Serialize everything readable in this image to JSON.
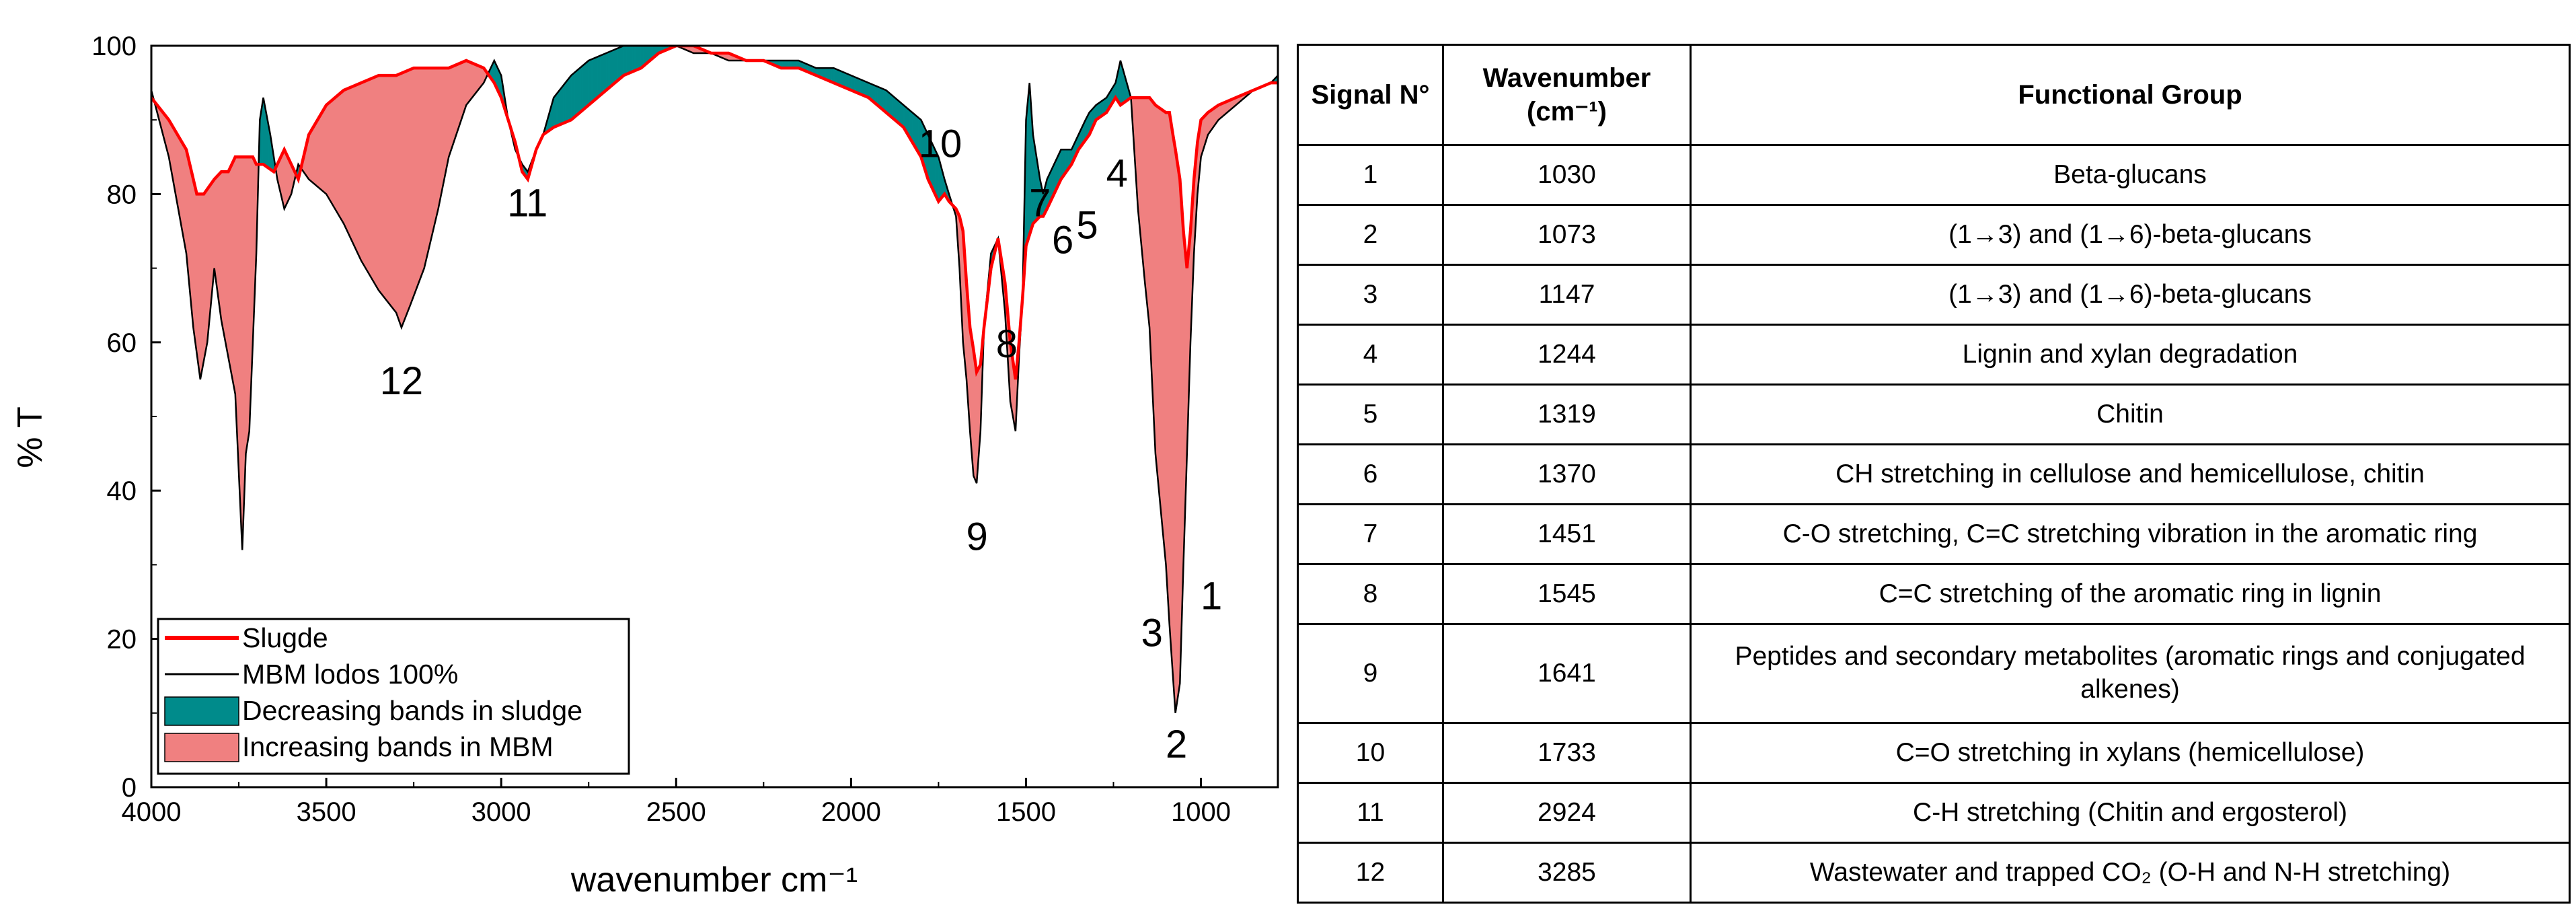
{
  "chart_data": {
    "type": "line",
    "ylabel": "% T",
    "xlabel": "wavenumber cm⁻¹",
    "xlim": [
      4000,
      780
    ],
    "ylim": [
      0,
      100
    ],
    "x_ticks": [
      4000,
      3500,
      3000,
      2500,
      2000,
      1500,
      1000
    ],
    "y_ticks": [
      0,
      20,
      40,
      60,
      80,
      100
    ],
    "legend": {
      "placement": "bottom-left",
      "entries": [
        "Slugde",
        "MBM lodos 100%",
        "Decreasing bands in sludge",
        "Increasing bands in MBM"
      ]
    },
    "colors": {
      "sludge": "#ff0000",
      "mbm": "#000000",
      "decreasing": "#008b8b",
      "increasing": "#f08080"
    },
    "series": [
      {
        "name": "Slugde",
        "x": [
          4000,
          3950,
          3900,
          3870,
          3850,
          3820,
          3800,
          3780,
          3760,
          3740,
          3730,
          3720,
          3710,
          3700,
          3680,
          3650,
          3620,
          3600,
          3580,
          3550,
          3500,
          3450,
          3400,
          3350,
          3300,
          3250,
          3200,
          3150,
          3100,
          3050,
          3020,
          3000,
          2980,
          2960,
          2940,
          2924,
          2900,
          2880,
          2850,
          2800,
          2750,
          2700,
          2650,
          2600,
          2550,
          2500,
          2450,
          2400,
          2350,
          2300,
          2250,
          2200,
          2150,
          2100,
          2050,
          2000,
          1950,
          1900,
          1850,
          1800,
          1780,
          1760,
          1750,
          1733,
          1720,
          1700,
          1690,
          1680,
          1670,
          1660,
          1650,
          1641,
          1630,
          1620,
          1600,
          1580,
          1560,
          1545,
          1530,
          1520,
          1510,
          1500,
          1480,
          1460,
          1451,
          1440,
          1420,
          1400,
          1370,
          1350,
          1319,
          1300,
          1270,
          1244,
          1230,
          1200,
          1180,
          1160,
          1147,
          1130,
          1100,
          1090,
          1080,
          1073,
          1060,
          1050,
          1040,
          1030,
          1020,
          1010,
          1000,
          980,
          950,
          900,
          850,
          800,
          780
        ],
        "y": [
          93,
          90,
          86,
          80,
          80,
          82,
          83,
          83,
          85,
          85,
          85,
          85,
          85,
          84,
          84,
          83,
          86,
          84,
          82,
          88,
          92,
          94,
          95,
          96,
          96,
          97,
          97,
          97,
          98,
          97,
          95,
          93,
          90,
          87,
          83,
          82,
          86,
          88,
          89,
          90,
          92,
          94,
          96,
          97,
          99,
          100,
          100,
          99,
          99,
          98,
          98,
          97,
          97,
          96,
          95,
          94,
          93,
          91,
          89,
          85,
          82,
          80,
          79,
          80,
          79,
          78,
          77,
          75,
          68,
          62,
          59,
          56,
          57,
          62,
          70,
          74,
          68,
          60,
          55,
          60,
          66,
          73,
          76,
          77,
          77,
          78,
          80,
          82,
          84,
          86,
          88,
          90,
          91,
          93,
          92,
          93,
          93,
          93,
          93,
          92,
          91,
          91,
          88,
          86,
          82,
          75,
          70,
          75,
          82,
          87,
          90,
          91,
          92,
          93,
          94,
          95,
          95
        ]
      },
      {
        "name": "MBM lodos 100%",
        "x": [
          4000,
          3950,
          3900,
          3880,
          3860,
          3840,
          3820,
          3800,
          3780,
          3760,
          3740,
          3730,
          3720,
          3700,
          3690,
          3680,
          3660,
          3640,
          3620,
          3600,
          3580,
          3550,
          3500,
          3450,
          3400,
          3350,
          3300,
          3285,
          3260,
          3220,
          3180,
          3150,
          3100,
          3050,
          3020,
          3000,
          2980,
          2960,
          2940,
          2924,
          2900,
          2880,
          2850,
          2800,
          2750,
          2700,
          2650,
          2600,
          2550,
          2500,
          2450,
          2400,
          2350,
          2300,
          2250,
          2200,
          2150,
          2100,
          2050,
          2000,
          1950,
          1900,
          1850,
          1800,
          1780,
          1760,
          1750,
          1733,
          1720,
          1700,
          1690,
          1680,
          1670,
          1660,
          1650,
          1641,
          1630,
          1620,
          1600,
          1580,
          1560,
          1545,
          1530,
          1520,
          1510,
          1500,
          1490,
          1480,
          1460,
          1451,
          1440,
          1420,
          1400,
          1370,
          1350,
          1330,
          1319,
          1300,
          1270,
          1244,
          1230,
          1200,
          1180,
          1160,
          1147,
          1130,
          1100,
          1090,
          1080,
          1073,
          1060,
          1050,
          1040,
          1030,
          1020,
          1010,
          1000,
          980,
          950,
          900,
          850,
          800,
          780
        ],
        "y": [
          94,
          85,
          72,
          62,
          55,
          60,
          70,
          63,
          58,
          53,
          32,
          45,
          48,
          72,
          90,
          93,
          88,
          82,
          78,
          80,
          84,
          82,
          80,
          76,
          71,
          67,
          64,
          62,
          65,
          70,
          78,
          85,
          92,
          95,
          98,
          96,
          90,
          86,
          84,
          83,
          86,
          88,
          93,
          96,
          98,
          99,
          100,
          100,
          100,
          100,
          99,
          99,
          98,
          98,
          98,
          98,
          98,
          97,
          97,
          96,
          95,
          94,
          92,
          90,
          88,
          86,
          85,
          82,
          80,
          77,
          70,
          60,
          55,
          48,
          42,
          41,
          48,
          62,
          72,
          74,
          64,
          52,
          48,
          58,
          66,
          90,
          95,
          88,
          82,
          80,
          82,
          84,
          86,
          86,
          88,
          90,
          91,
          92,
          93,
          95,
          98,
          93,
          78,
          68,
          62,
          45,
          30,
          22,
          15,
          10,
          14,
          30,
          45,
          60,
          72,
          80,
          85,
          88,
          90,
          92,
          94,
          95,
          96
        ]
      }
    ],
    "annotations": [
      {
        "label": "1",
        "x": 970,
        "y": 24
      },
      {
        "label": "2",
        "x": 1070,
        "y": 4
      },
      {
        "label": "3",
        "x": 1140,
        "y": 19
      },
      {
        "label": "4",
        "x": 1240,
        "y": 81
      },
      {
        "label": "5",
        "x": 1325,
        "y": 74
      },
      {
        "label": "6",
        "x": 1395,
        "y": 72
      },
      {
        "label": "7",
        "x": 1460,
        "y": 77
      },
      {
        "label": "8",
        "x": 1555,
        "y": 58
      },
      {
        "label": "9",
        "x": 1640,
        "y": 32
      },
      {
        "label": "10",
        "x": 1745,
        "y": 85
      },
      {
        "label": "11",
        "x": 2925,
        "y": 77
      },
      {
        "label": "12",
        "x": 3285,
        "y": 53
      }
    ]
  },
  "table": {
    "headers": [
      "Signal N°",
      "Wavenumber (cm⁻¹)",
      "Functional Group"
    ],
    "rows": [
      {
        "signal": "1",
        "wavenumber": "1030",
        "group": "Beta-glucans"
      },
      {
        "signal": "2",
        "wavenumber": "1073",
        "group": "(1→3) and (1→6)-beta-glucans"
      },
      {
        "signal": "3",
        "wavenumber": "1147",
        "group": "(1→3) and (1→6)-beta-glucans"
      },
      {
        "signal": "4",
        "wavenumber": "1244",
        "group": "Lignin and xylan degradation"
      },
      {
        "signal": "5",
        "wavenumber": "1319",
        "group": "Chitin"
      },
      {
        "signal": "6",
        "wavenumber": "1370",
        "group": "CH stretching in cellulose and hemicellulose, chitin"
      },
      {
        "signal": "7",
        "wavenumber": "1451",
        "group": "C-O stretching, C=C stretching vibration in the aromatic ring"
      },
      {
        "signal": "8",
        "wavenumber": "1545",
        "group": "C=C stretching of the aromatic ring in lignin"
      },
      {
        "signal": "9",
        "wavenumber": "1641",
        "group": "Peptides and secondary metabolites (aromatic rings and conjugated alkenes)"
      },
      {
        "signal": "10",
        "wavenumber": "1733",
        "group": "C=O stretching in xylans (hemicellulose)"
      },
      {
        "signal": "11",
        "wavenumber": "2924",
        "group": "C-H stretching (Chitin and ergosterol)"
      },
      {
        "signal": "12",
        "wavenumber": "3285",
        "group": "Wastewater and trapped CO₂ (O-H and N-H stretching)"
      }
    ]
  }
}
